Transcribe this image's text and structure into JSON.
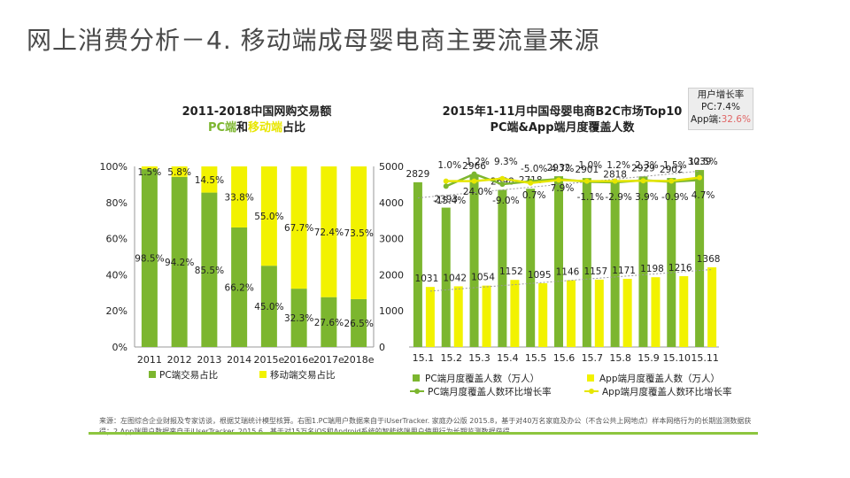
{
  "slide": {
    "title": "网上消费分析－4. 移动端成母婴电商主要流量来源"
  },
  "left_chart_title": {
    "line1": "2011-2018中国网购交易额",
    "pc": "PC端",
    "and": "和",
    "mobile": "移动端",
    "suffix": "占比"
  },
  "right_chart_title": {
    "line1": "2015年1-11月中国母婴电商B2C市场Top10",
    "line2": "PC端&App端月度覆盖人数"
  },
  "callout": {
    "title": "用户增长率",
    "pc": "PC:7.4%",
    "app_label": "App端:",
    "app_value": "32.6%"
  },
  "source_note": "来源：左图综合企业财报及专家访谈，根据艾瑞统计模型核算。右图1.PC端用户数据来自于iUserTracker. 家庭办公版 2015.8，基于对40万名家庭及办公（不含公共上网地点）样本网络行为的长期监测数据获得；2.App端用户数据来自于iUserTracker. 2015.6，基于对15万名iOS和Android系统的智能终端用户使用行为长期监测数据获得。",
  "colors": {
    "green": "#7cb62f",
    "yellow": "#f2f200",
    "yellow_line": "#e6e600",
    "trend": "#999999",
    "accent": "#8dc63f"
  },
  "chart_data": [
    {
      "type": "bar",
      "stacked": true,
      "categories": [
        "2011",
        "2012",
        "2013",
        "2014",
        "2015e",
        "2016e",
        "2017e",
        "2018e"
      ],
      "series": [
        {
          "name": "PC端交易占比",
          "values": [
            98.5,
            94.2,
            85.5,
            66.2,
            45.0,
            32.3,
            27.6,
            26.5
          ]
        },
        {
          "name": "移动端交易占比",
          "values": [
            1.5,
            5.8,
            14.5,
            33.8,
            55.0,
            67.7,
            72.4,
            73.5
          ]
        }
      ],
      "ylim": [
        0,
        100
      ],
      "yticks": [
        "0%",
        "20%",
        "40%",
        "60%",
        "80%",
        "100%"
      ],
      "y2lim": [
        0,
        5000
      ],
      "y2ticks": [
        "0",
        "1000",
        "2000",
        "3000",
        "4000",
        "5000"
      ],
      "legend": "bottom"
    },
    {
      "type": "bar",
      "categories": [
        "15.1",
        "15.2",
        "15.3",
        "15.4",
        "15.5",
        "15.6",
        "15.7",
        "15.8",
        "15.9",
        "15.10",
        "15.11"
      ],
      "series": [
        {
          "name": "PC端月度覆盖人数（万人）",
          "type": "bar",
          "values": [
            2829,
            2393,
            2966,
            2698,
            2718,
            2932,
            2901,
            2818,
            2929,
            2902,
            3039
          ]
        },
        {
          "name": "App端月度覆盖人数（万人）",
          "type": "bar",
          "values": [
            1031,
            1042,
            1054,
            1152,
            1095,
            1146,
            1157,
            1171,
            1198,
            1216,
            1368
          ]
        },
        {
          "name": "PC端月度覆盖人数环比增长率",
          "type": "line",
          "values": [
            null,
            -15.4,
            24.0,
            -9.0,
            0.7,
            7.9,
            -1.1,
            -2.9,
            3.9,
            -0.9,
            4.7
          ],
          "labels": [
            null,
            "-15.4%",
            "24.0%",
            "-9.0%",
            "0.7%",
            "7.9%",
            "-1.1%",
            "-2.9%",
            "3.9%",
            "-0.9%",
            "4.7%"
          ]
        },
        {
          "name": "App端月度覆盖人数环比增长率",
          "type": "line",
          "values": [
            null,
            1.0,
            1.2,
            9.3,
            -5.0,
            4.7,
            1.0,
            1.2,
            2.3,
            1.5,
            12.5
          ],
          "labels": [
            null,
            "1.0%",
            "1.2%",
            "9.3%",
            "-5.0%",
            "4.7%",
            "1.0%",
            "1.2%",
            "2.3%",
            "1.5%",
            "12.5%"
          ]
        }
      ],
      "trendlines": true,
      "legend": "bottom"
    }
  ]
}
